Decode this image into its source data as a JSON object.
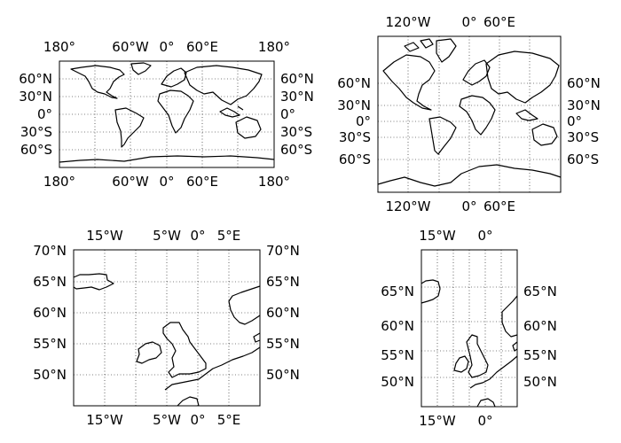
{
  "maps": [
    {
      "projection": "cylindrical-equidistant",
      "extent": "global",
      "top_labels": [
        "180°",
        "60°W",
        "0°",
        "60°E",
        "180°"
      ],
      "bottom_labels": [
        "180°",
        "60°W",
        "0°",
        "60°E",
        "180°"
      ],
      "left_labels": [
        "60°N",
        "30°N",
        "0°",
        "30°S",
        "60°S"
      ],
      "right_labels": [
        "60°N",
        "30°N",
        "0°",
        "30°S",
        "60°S"
      ]
    },
    {
      "projection": "mercator",
      "extent": "global",
      "top_labels": [
        "120°W",
        "0°",
        "60°E"
      ],
      "bottom_labels": [
        "120°W",
        "0°",
        "60°E"
      ],
      "left_labels": [
        "60°N",
        "30°N",
        "0°",
        "30°S",
        "60°S"
      ],
      "right_labels": [
        "60°N",
        "30°N",
        "0°",
        "30°S",
        "60°S"
      ]
    },
    {
      "projection": "cylindrical-equidistant",
      "extent": "british-isles",
      "top_labels": [
        "15°W",
        "5°W",
        "0°",
        "5°E"
      ],
      "bottom_labels": [
        "15°W",
        "5°W",
        "0°",
        "5°E"
      ],
      "left_labels": [
        "70°N",
        "65°N",
        "60°N",
        "55°N",
        "50°N"
      ],
      "right_labels": [
        "70°N",
        "65°N",
        "60°N",
        "55°N",
        "50°N"
      ]
    },
    {
      "projection": "mercator",
      "extent": "british-isles",
      "top_labels": [
        "15°W",
        "0°"
      ],
      "bottom_labels": [
        "15°W",
        "0°"
      ],
      "left_labels": [
        "65°N",
        "60°N",
        "55°N",
        "50°N"
      ],
      "right_labels": [
        "65°N",
        "60°N",
        "55°N",
        "50°N"
      ]
    }
  ],
  "colors": {
    "coastline": "#000000",
    "grid": "#000000",
    "background": "#ffffff"
  },
  "grid": true
}
